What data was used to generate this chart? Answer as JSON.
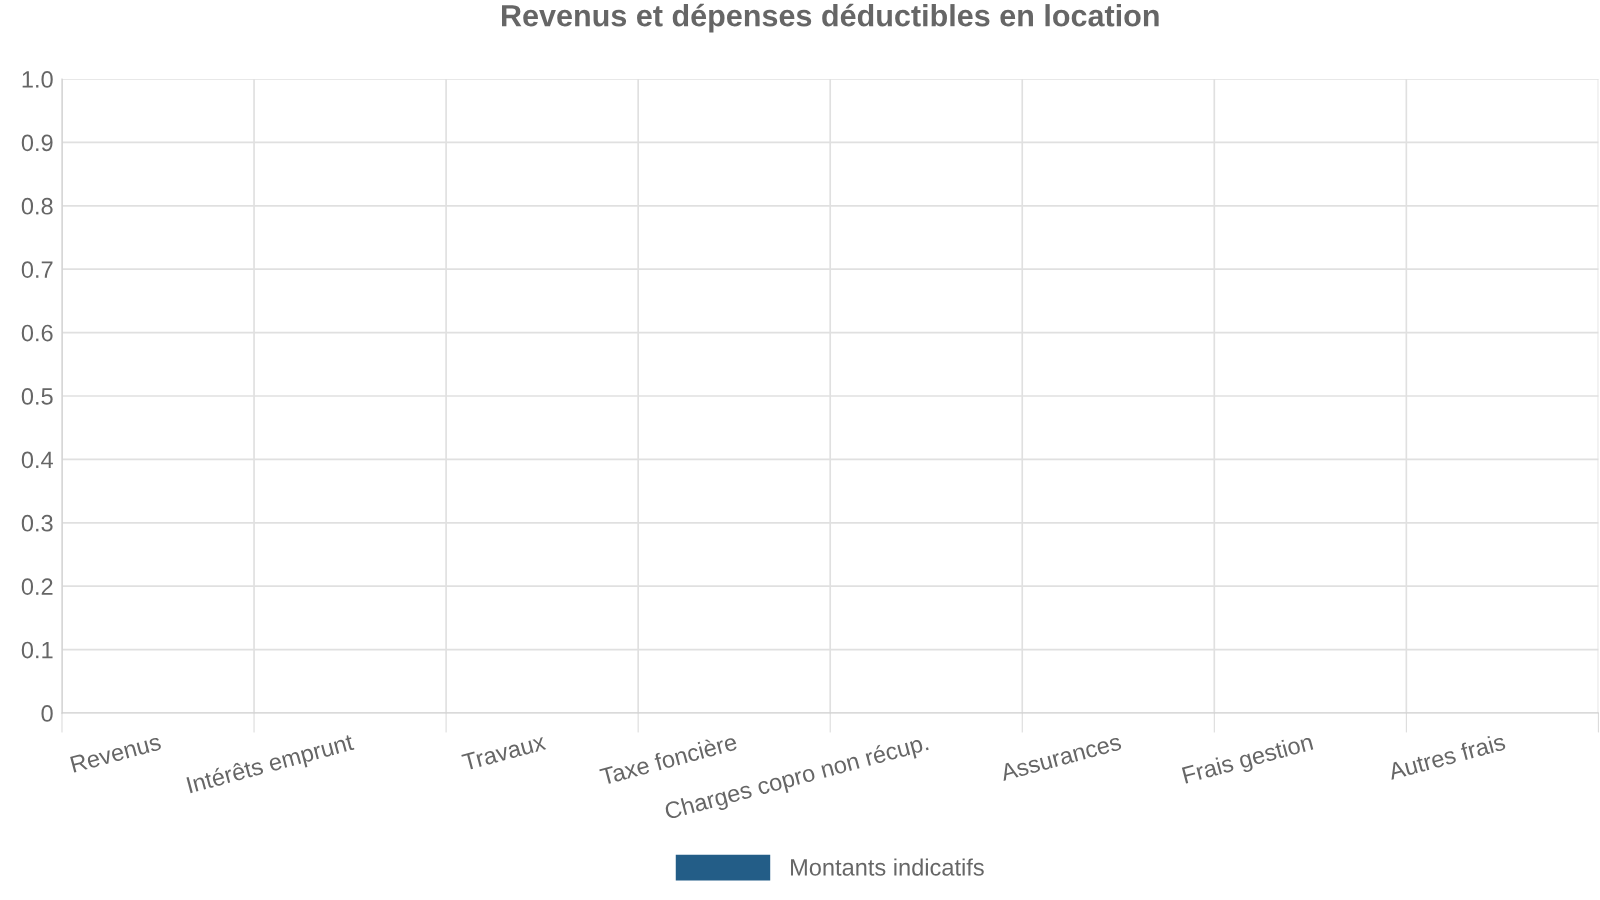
{
  "chart_data": {
    "type": "bar",
    "title": "Revenus et dépenses déductibles en location",
    "categories": [
      "Revenus",
      "Intérêts emprunt",
      "Travaux",
      "Taxe foncière",
      "Charges copro non récup.",
      "Assurances",
      "Frais gestion",
      "Autres frais"
    ],
    "series": [
      {
        "name": "Montants indicatifs",
        "color": "#235d87",
        "values": [
          null,
          null,
          null,
          null,
          null,
          null,
          null,
          null
        ]
      }
    ],
    "ylim": [
      0,
      1
    ],
    "yticks": [
      0,
      0.1,
      0.2,
      0.3,
      0.4,
      0.5,
      0.6,
      0.7,
      0.8,
      0.9,
      {
        "value": 1,
        "label": "1.0"
      }
    ],
    "grid": true,
    "legend": "bottom"
  }
}
